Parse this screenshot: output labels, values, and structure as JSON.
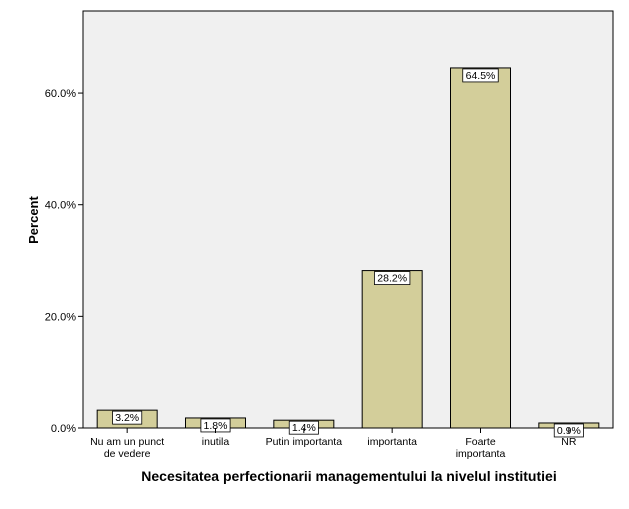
{
  "chart_data": {
    "type": "bar",
    "xlabel": "Necesitatea perfectionarii managementului la nivelul institutiei",
    "ylabel": "Percent",
    "categories": [
      "Nu am un punct de vedere",
      "inutila",
      "Putin importanta",
      "importanta",
      "Foarte importanta",
      "NR"
    ],
    "category_lines": [
      [
        "Nu am un punct",
        "de vedere"
      ],
      [
        "inutila"
      ],
      [
        "Putin importanta"
      ],
      [
        "importanta"
      ],
      [
        "Foarte",
        "importanta"
      ],
      [
        "NR"
      ]
    ],
    "values": [
      3.2,
      1.8,
      1.4,
      28.2,
      64.5,
      0.9
    ],
    "data_labels": [
      "3.2%",
      "1.8%",
      "1.4%",
      "28.2%",
      "64.5%",
      "0.9%"
    ],
    "yticks": [
      0,
      20,
      40,
      60
    ],
    "ytick_labels": [
      "0.0%",
      "20.0%",
      "40.0%",
      "60.0%"
    ],
    "ylim": [
      0,
      74.7
    ],
    "grid": false,
    "colors": {
      "bar_fill": "#d3ce9a",
      "bar_stroke": "#000000",
      "plot_background": "#f0f0f0",
      "page_background": "#ffffff"
    }
  }
}
